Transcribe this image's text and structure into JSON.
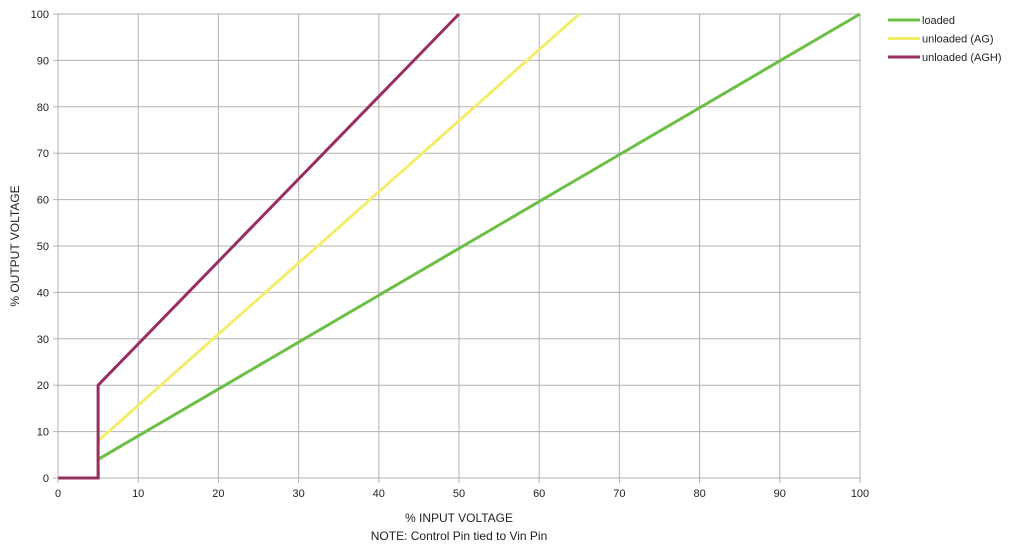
{
  "chart_data": {
    "type": "line",
    "xlabel": "% INPUT VOLTAGE",
    "note": "NOTE: Control Pin tied to Vin Pin",
    "ylabel": "% OUTPUT VOLTAGE",
    "xlim": [
      0,
      100
    ],
    "ylim": [
      0,
      100
    ],
    "xticks": [
      0,
      10,
      20,
      30,
      40,
      50,
      60,
      70,
      80,
      90,
      100
    ],
    "yticks": [
      0,
      10,
      20,
      30,
      40,
      50,
      60,
      70,
      80,
      90,
      100
    ],
    "grid": true,
    "legend_position": "top-right",
    "series": [
      {
        "name": "loaded",
        "color": "#6cbf45",
        "points": [
          [
            0,
            0
          ],
          [
            5,
            0
          ],
          [
            5,
            4
          ],
          [
            100,
            100
          ]
        ]
      },
      {
        "name": "unloaded (AG)",
        "color": "#f2ee6b",
        "points": [
          [
            0,
            0
          ],
          [
            5,
            0
          ],
          [
            5,
            8
          ],
          [
            65,
            100
          ]
        ]
      },
      {
        "name": "unloaded (AGH)",
        "color": "#992e63",
        "points": [
          [
            0,
            0
          ],
          [
            5,
            0
          ],
          [
            5,
            20
          ],
          [
            50,
            100
          ]
        ]
      }
    ]
  }
}
